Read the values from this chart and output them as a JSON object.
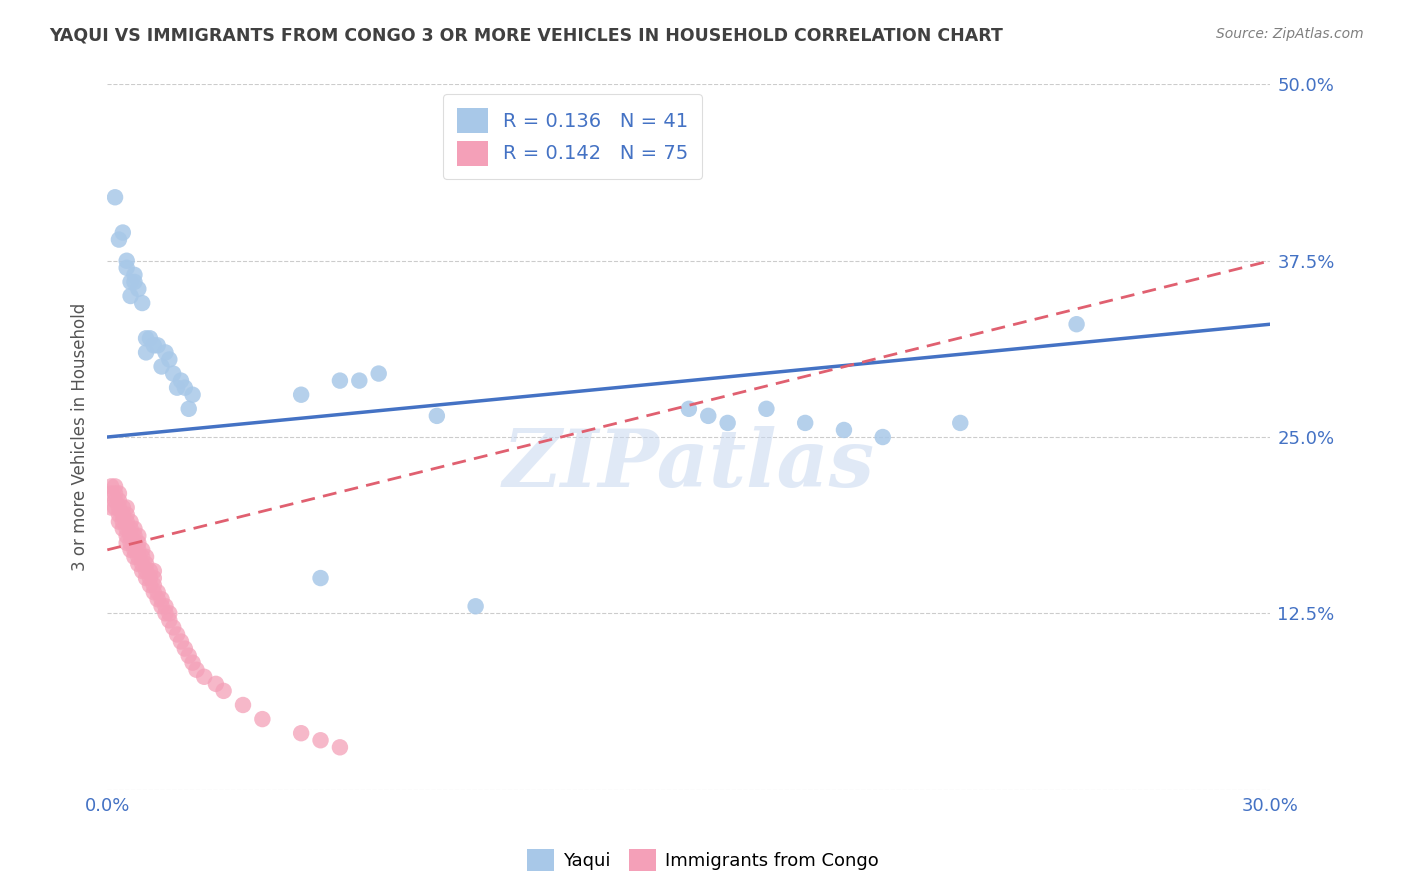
{
  "title": "YAQUI VS IMMIGRANTS FROM CONGO 3 OR MORE VEHICLES IN HOUSEHOLD CORRELATION CHART",
  "source": "Source: ZipAtlas.com",
  "ylabel": "3 or more Vehicles in Household",
  "r_blue": 0.136,
  "n_blue": 41,
  "r_pink": 0.142,
  "n_pink": 75,
  "xlim": [
    0.0,
    0.3
  ],
  "ylim": [
    0.0,
    0.5
  ],
  "xticks": [
    0.0,
    0.05,
    0.1,
    0.15,
    0.2,
    0.25,
    0.3
  ],
  "yticks": [
    0.0,
    0.125,
    0.25,
    0.375,
    0.5
  ],
  "color_blue": "#A8C8E8",
  "color_pink": "#F4A0B8",
  "line_color_blue": "#4472C4",
  "line_color_pink": "#E06070",
  "bg_color": "#FFFFFF",
  "grid_color": "#CCCCCC",
  "watermark_text": "ZIPatlas",
  "watermark_color": "#C8D8F0",
  "title_color": "#404040",
  "source_color": "#808080",
  "axis_tick_color": "#4472C4",
  "legend_text_color": "#4472C4",
  "blue_line_x0": 0.0,
  "blue_line_y0": 0.25,
  "blue_line_x1": 0.3,
  "blue_line_y1": 0.33,
  "pink_line_x0": 0.0,
  "pink_line_y0": 0.17,
  "pink_line_x1": 0.3,
  "pink_line_y1": 0.375,
  "yaqui_x": [
    0.002,
    0.003,
    0.004,
    0.005,
    0.005,
    0.006,
    0.006,
    0.007,
    0.007,
    0.008,
    0.009,
    0.01,
    0.01,
    0.011,
    0.012,
    0.013,
    0.014,
    0.015,
    0.016,
    0.017,
    0.018,
    0.019,
    0.02,
    0.021,
    0.022,
    0.05,
    0.055,
    0.06,
    0.065,
    0.07,
    0.085,
    0.095,
    0.15,
    0.155,
    0.16,
    0.17,
    0.18,
    0.19,
    0.2,
    0.22,
    0.25
  ],
  "yaqui_y": [
    0.42,
    0.39,
    0.395,
    0.37,
    0.375,
    0.35,
    0.36,
    0.36,
    0.365,
    0.355,
    0.345,
    0.32,
    0.31,
    0.32,
    0.315,
    0.315,
    0.3,
    0.31,
    0.305,
    0.295,
    0.285,
    0.29,
    0.285,
    0.27,
    0.28,
    0.28,
    0.15,
    0.29,
    0.29,
    0.295,
    0.265,
    0.13,
    0.27,
    0.265,
    0.26,
    0.27,
    0.26,
    0.255,
    0.25,
    0.26,
    0.33
  ],
  "congo_x": [
    0.001,
    0.001,
    0.001,
    0.002,
    0.002,
    0.002,
    0.002,
    0.003,
    0.003,
    0.003,
    0.003,
    0.003,
    0.004,
    0.004,
    0.004,
    0.004,
    0.005,
    0.005,
    0.005,
    0.005,
    0.005,
    0.005,
    0.006,
    0.006,
    0.006,
    0.006,
    0.006,
    0.007,
    0.007,
    0.007,
    0.007,
    0.007,
    0.008,
    0.008,
    0.008,
    0.008,
    0.008,
    0.009,
    0.009,
    0.009,
    0.009,
    0.01,
    0.01,
    0.01,
    0.01,
    0.011,
    0.011,
    0.011,
    0.012,
    0.012,
    0.012,
    0.012,
    0.013,
    0.013,
    0.014,
    0.014,
    0.015,
    0.015,
    0.016,
    0.016,
    0.017,
    0.018,
    0.019,
    0.02,
    0.021,
    0.022,
    0.023,
    0.025,
    0.028,
    0.03,
    0.035,
    0.04,
    0.05,
    0.055,
    0.06
  ],
  "congo_y": [
    0.2,
    0.21,
    0.215,
    0.2,
    0.205,
    0.21,
    0.215,
    0.19,
    0.195,
    0.2,
    0.205,
    0.21,
    0.185,
    0.19,
    0.195,
    0.2,
    0.175,
    0.18,
    0.185,
    0.19,
    0.195,
    0.2,
    0.17,
    0.175,
    0.18,
    0.185,
    0.19,
    0.165,
    0.17,
    0.175,
    0.18,
    0.185,
    0.16,
    0.165,
    0.17,
    0.175,
    0.18,
    0.155,
    0.16,
    0.165,
    0.17,
    0.15,
    0.155,
    0.16,
    0.165,
    0.145,
    0.15,
    0.155,
    0.14,
    0.145,
    0.15,
    0.155,
    0.135,
    0.14,
    0.13,
    0.135,
    0.125,
    0.13,
    0.12,
    0.125,
    0.115,
    0.11,
    0.105,
    0.1,
    0.095,
    0.09,
    0.085,
    0.08,
    0.075,
    0.07,
    0.06,
    0.05,
    0.04,
    0.035,
    0.03
  ]
}
